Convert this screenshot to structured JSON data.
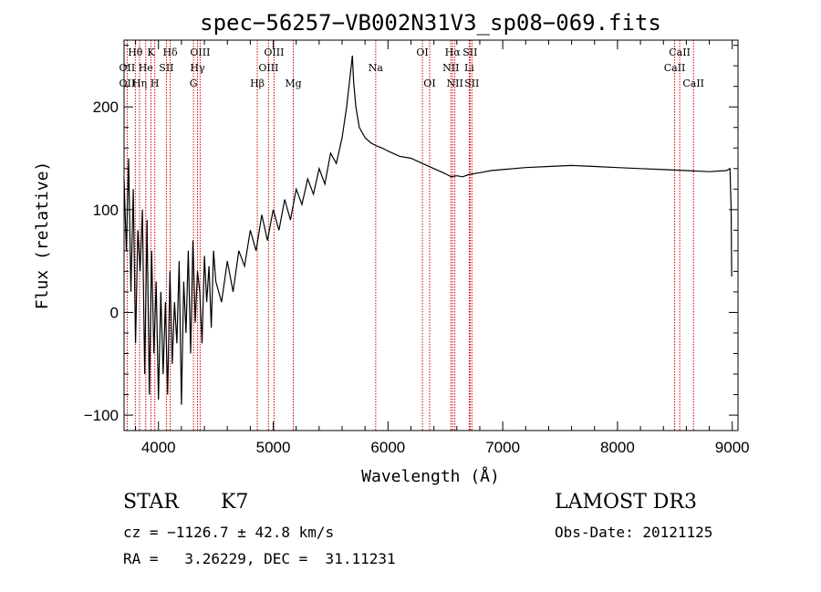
{
  "chart_data": {
    "type": "line",
    "title": "spec−56257−VB002N31V3_sp08−069.fits",
    "xlabel": "Wavelength (Å)",
    "ylabel": "Flux (relative)",
    "xlim": [
      3700,
      9050
    ],
    "ylim": [
      -115,
      265
    ],
    "xticks": [
      4000,
      5000,
      6000,
      7000,
      8000,
      9000
    ],
    "yticks": [
      -100,
      0,
      100,
      200
    ],
    "xtick_labels": [
      "4000",
      "5000",
      "6000",
      "7000",
      "8000",
      "9000"
    ],
    "ytick_labels": [
      "−100",
      "0",
      "100",
      "200"
    ],
    "grid": false,
    "series": [
      {
        "name": "flux",
        "x": [
          3700,
          3720,
          3740,
          3760,
          3780,
          3800,
          3820,
          3840,
          3860,
          3880,
          3900,
          3920,
          3940,
          3960,
          3980,
          4000,
          4020,
          4040,
          4060,
          4080,
          4100,
          4120,
          4140,
          4160,
          4180,
          4200,
          4220,
          4240,
          4260,
          4280,
          4300,
          4320,
          4340,
          4360,
          4380,
          4400,
          4420,
          4440,
          4460,
          4480,
          4500,
          4550,
          4600,
          4650,
          4700,
          4750,
          4800,
          4850,
          4900,
          4950,
          5000,
          5050,
          5100,
          5150,
          5200,
          5250,
          5300,
          5350,
          5400,
          5450,
          5500,
          5550,
          5600,
          5640,
          5670,
          5690,
          5700,
          5720,
          5750,
          5800,
          5850,
          5900,
          5950,
          6000,
          6100,
          6200,
          6300,
          6400,
          6500,
          6550,
          6600,
          6650,
          6700,
          6800,
          6900,
          7000,
          7200,
          7400,
          7600,
          7800,
          8000,
          8200,
          8400,
          8600,
          8800,
          8950,
          8980,
          8990,
          8995
        ],
        "values": [
          130,
          60,
          150,
          20,
          120,
          -30,
          80,
          40,
          100,
          -60,
          90,
          -80,
          60,
          -40,
          30,
          -85,
          20,
          -60,
          10,
          -80,
          40,
          -50,
          10,
          -30,
          50,
          -90,
          30,
          -20,
          60,
          -40,
          70,
          -10,
          40,
          20,
          -30,
          55,
          10,
          45,
          -15,
          60,
          30,
          10,
          50,
          20,
          60,
          45,
          80,
          60,
          95,
          70,
          100,
          80,
          110,
          90,
          120,
          105,
          130,
          115,
          140,
          125,
          155,
          145,
          170,
          200,
          230,
          250,
          225,
          200,
          180,
          170,
          165,
          162,
          160,
          157,
          152,
          150,
          145,
          140,
          135,
          132,
          133,
          132,
          134,
          136,
          138,
          139,
          141,
          142,
          143,
          142,
          141,
          140,
          139,
          138,
          137,
          138,
          140,
          100,
          35
        ]
      }
    ],
    "line_labels": [
      {
        "text": "Hθ",
        "x": 3798,
        "row": 1
      },
      {
        "text": "K",
        "x": 3934,
        "row": 1
      },
      {
        "text": "Hδ",
        "x": 4102,
        "row": 1
      },
      {
        "text": "OIII",
        "x": 4363,
        "row": 1
      },
      {
        "text": "OIII",
        "x": 5007,
        "row": 1
      },
      {
        "text": "OI",
        "x": 6300,
        "row": 1
      },
      {
        "text": "Hα",
        "x": 6563,
        "row": 1
      },
      {
        "text": "SII",
        "x": 6716,
        "row": 1
      },
      {
        "text": "CaII",
        "x": 8542,
        "row": 1
      },
      {
        "text": "OII",
        "x": 3727,
        "row": 2
      },
      {
        "text": "He",
        "x": 3889,
        "row": 2
      },
      {
        "text": "SII",
        "x": 4069,
        "row": 2
      },
      {
        "text": "Hγ",
        "x": 4340,
        "row": 2
      },
      {
        "text": "OIII",
        "x": 4959,
        "row": 2
      },
      {
        "text": "Na",
        "x": 5893,
        "row": 2
      },
      {
        "text": "NII",
        "x": 6548,
        "row": 2
      },
      {
        "text": "Li",
        "x": 6708,
        "row": 2
      },
      {
        "text": "CaII",
        "x": 8498,
        "row": 2
      },
      {
        "text": "OII",
        "x": 3727,
        "row": 3
      },
      {
        "text": "Hη",
        "x": 3835,
        "row": 3
      },
      {
        "text": "H",
        "x": 3968,
        "row": 3
      },
      {
        "text": "G",
        "x": 4305,
        "row": 3
      },
      {
        "text": "Hβ",
        "x": 4861,
        "row": 3
      },
      {
        "text": "Mg",
        "x": 5175,
        "row": 3
      },
      {
        "text": "OI",
        "x": 6363,
        "row": 3
      },
      {
        "text": "NII",
        "x": 6583,
        "row": 3
      },
      {
        "text": "SII",
        "x": 6731,
        "row": 3
      },
      {
        "text": "CaII",
        "x": 8662,
        "row": 3
      }
    ],
    "marker_lines": [
      3727,
      3798,
      3835,
      3889,
      3934,
      3968,
      4069,
      4102,
      4305,
      4340,
      4363,
      4861,
      4959,
      5007,
      5175,
      5893,
      6300,
      6363,
      6548,
      6563,
      6583,
      6708,
      6716,
      6731,
      8498,
      8542,
      8662
    ],
    "marker_color": "#cc0000",
    "line_color": "#000000"
  },
  "info": {
    "class": "STAR",
    "subclass": "K7",
    "survey": "LAMOST DR3",
    "cz": "cz = −1126.7 ± 42.8 km/s",
    "obs_date": "Obs-Date: 20121125",
    "radec": "RA =   3.26229, DEC =  31.11231"
  }
}
